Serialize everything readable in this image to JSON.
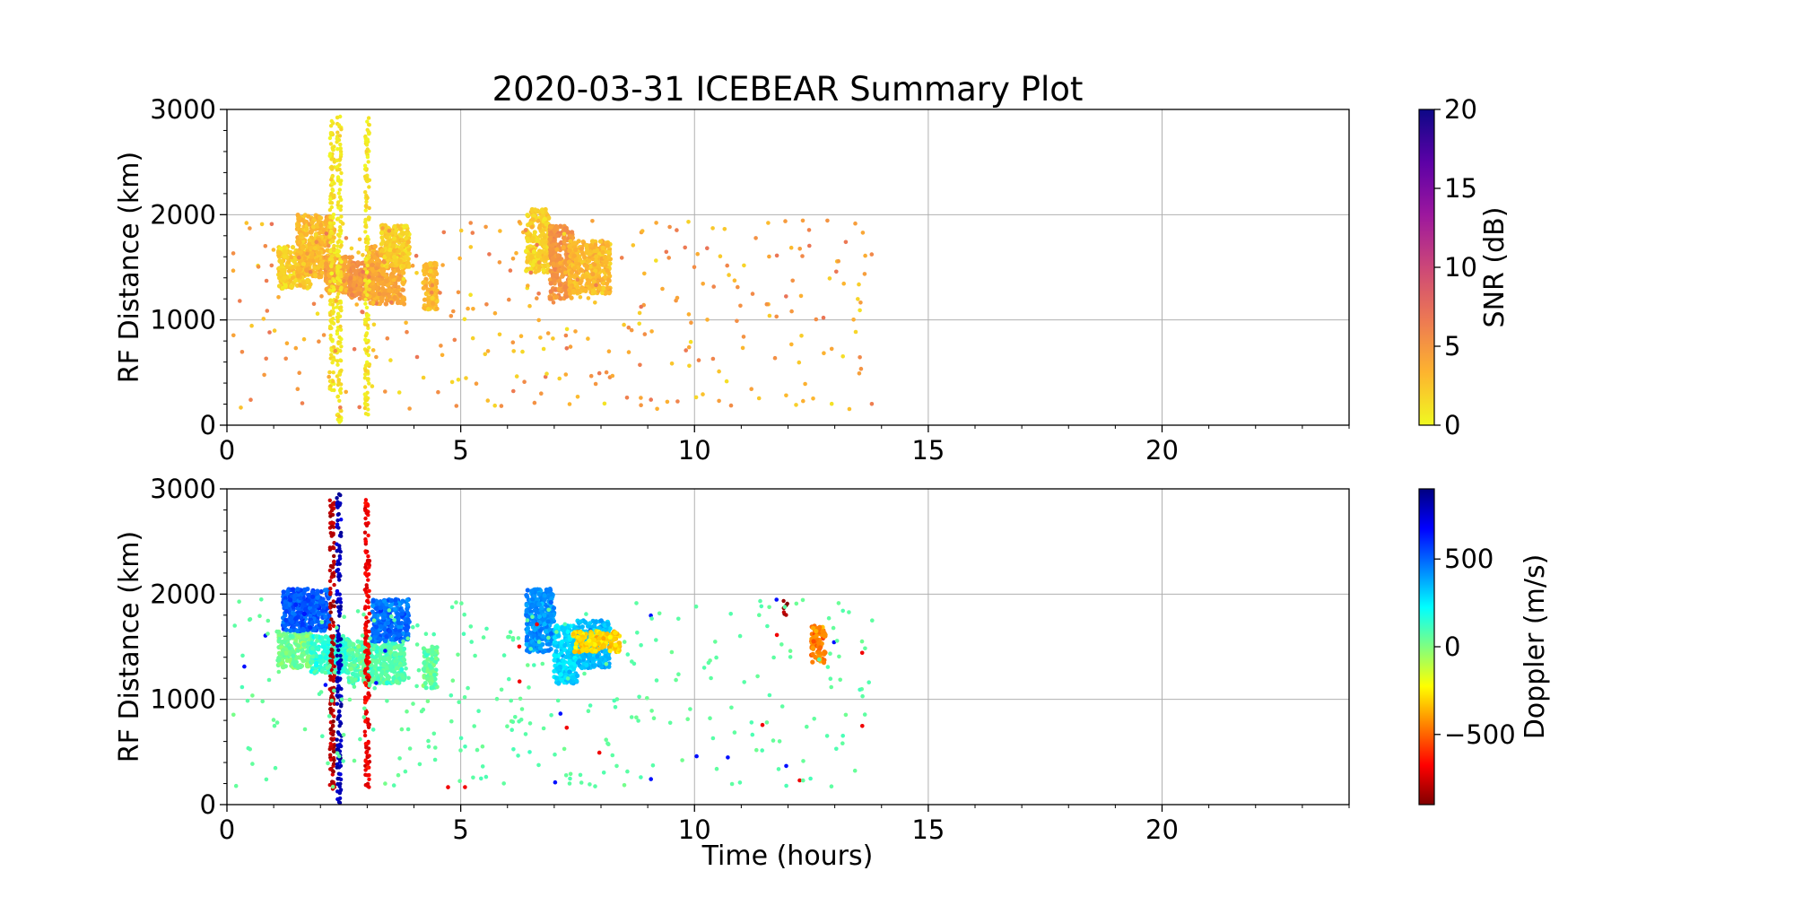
{
  "chart_data": {
    "type": "scatter",
    "title": "2020-03-31 ICEBEAR Summary Plot",
    "xlabel": "Time (hours)",
    "xlim": [
      0,
      24
    ],
    "x_ticks": [
      0,
      5,
      10,
      15,
      20
    ],
    "grid": true,
    "panels": [
      {
        "ylabel": "RF Distance (km)",
        "ylim": [
          0,
          3000
        ],
        "y_ticks": [
          0,
          1000,
          2000,
          3000
        ],
        "colorbar": {
          "label": "SNR (dB)",
          "range": [
            0,
            20
          ],
          "ticks": [
            0,
            5,
            10,
            15,
            20
          ],
          "colormap": "plasma_r",
          "colors": [
            "#f0f921",
            "#fdb42f",
            "#ed7953",
            "#cc4778",
            "#9c179e",
            "#5c01a6",
            "#0d0887"
          ]
        },
        "clusters": [
          {
            "t": [
              1.1,
              1.8
            ],
            "r": [
              1300,
              1700
            ],
            "value": 2
          },
          {
            "t": [
              1.5,
              2.3
            ],
            "r": [
              1400,
              2000
            ],
            "value": 3
          },
          {
            "t": [
              2.1,
              2.7
            ],
            "r": [
              1250,
              1600
            ],
            "value": 4
          },
          {
            "t": [
              2.6,
              3.1
            ],
            "r": [
              1200,
              1550
            ],
            "value": 5
          },
          {
            "t": [
              3.0,
              3.8
            ],
            "r": [
              1150,
              1700
            ],
            "value": 4
          },
          {
            "t": [
              3.3,
              3.9
            ],
            "r": [
              1500,
              1900
            ],
            "value": 2
          },
          {
            "t": [
              4.2,
              4.5
            ],
            "r": [
              1100,
              1550
            ],
            "value": 3
          },
          {
            "t": [
              6.4,
              6.9
            ],
            "r": [
              1450,
              2050
            ],
            "value": 2
          },
          {
            "t": [
              6.9,
              7.4
            ],
            "r": [
              1200,
              1900
            ],
            "value": 5
          },
          {
            "t": [
              7.3,
              8.2
            ],
            "r": [
              1250,
              1750
            ],
            "value": 3
          },
          {
            "t": [
              2.2,
              2.3
            ],
            "r": [
              300,
              2900
            ],
            "value": 1
          },
          {
            "t": [
              2.35,
              2.45
            ],
            "r": [
              0,
              2950
            ],
            "value": 1
          },
          {
            "t": [
              2.95,
              3.05
            ],
            "r": [
              100,
              2950
            ],
            "value": 1
          }
        ]
      },
      {
        "ylabel": "RF Distance (km)",
        "ylim": [
          0,
          3000
        ],
        "y_ticks": [
          0,
          1000,
          2000,
          3000
        ],
        "colorbar": {
          "label": "Doppler (m/s)",
          "range": [
            -900,
            900
          ],
          "ticks": [
            -500,
            0,
            500
          ],
          "tick_labels": [
            "−500",
            "0",
            "500"
          ],
          "colormap": "jet_r",
          "colors": [
            "#800000",
            "#ff0000",
            "#ff8000",
            "#ffff00",
            "#80ff80",
            "#00ffff",
            "#0080ff",
            "#0000ff",
            "#000080"
          ]
        },
        "clusters": [
          {
            "t": [
              1.1,
              1.8
            ],
            "r": [
              1300,
              1650
            ],
            "value": 20
          },
          {
            "t": [
              1.2,
              2.2
            ],
            "r": [
              1650,
              2050
            ],
            "value": 520
          },
          {
            "t": [
              1.8,
              2.6
            ],
            "r": [
              1250,
              1600
            ],
            "value": 150
          },
          {
            "t": [
              2.6,
              3.8
            ],
            "r": [
              1150,
              1550
            ],
            "value": 80
          },
          {
            "t": [
              3.1,
              3.9
            ],
            "r": [
              1550,
              1950
            ],
            "value": 480
          },
          {
            "t": [
              4.2,
              4.5
            ],
            "r": [
              1100,
              1500
            ],
            "value": 60
          },
          {
            "t": [
              6.4,
              7.0
            ],
            "r": [
              1450,
              2050
            ],
            "value": 420
          },
          {
            "t": [
              7.0,
              7.5
            ],
            "r": [
              1150,
              1700
            ],
            "value": 300
          },
          {
            "t": [
              7.5,
              8.2
            ],
            "r": [
              1300,
              1750
            ],
            "value": 350
          },
          {
            "t": [
              7.4,
              8.4
            ],
            "r": [
              1450,
              1650
            ],
            "value": -300
          },
          {
            "t": [
              11.9,
              12.0
            ],
            "r": [
              1800,
              1950
            ],
            "value": -850
          },
          {
            "t": [
              12.5,
              12.8
            ],
            "r": [
              1350,
              1700
            ],
            "value": -450
          },
          {
            "t": [
              2.2,
              2.3
            ],
            "r": [
              100,
              2900
            ],
            "value": -800
          },
          {
            "t": [
              2.35,
              2.45
            ],
            "r": [
              0,
              2950
            ],
            "value": 800
          },
          {
            "t": [
              2.95,
              3.05
            ],
            "r": [
              100,
              2900
            ],
            "value": -700
          }
        ]
      }
    ]
  }
}
